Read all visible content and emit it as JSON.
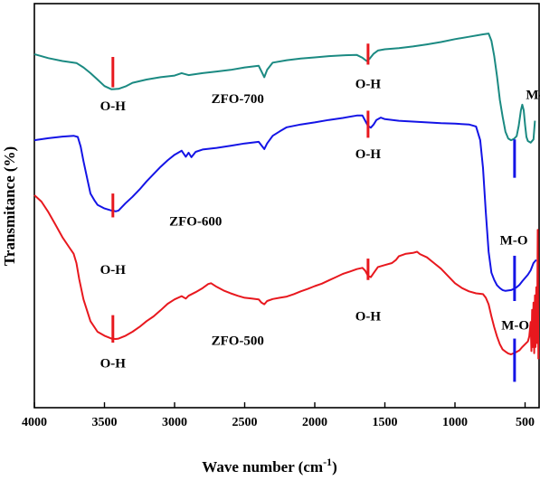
{
  "chart_data": {
    "type": "line",
    "xlabel": "Wave number (cm",
    "xlabel_sup": "-1",
    "xlabel_close": ")",
    "ylabel": "Transmitance (%)",
    "xlim": [
      4000,
      400
    ],
    "x_reversed": true,
    "xticks": [
      4000,
      3500,
      3000,
      2500,
      2000,
      1500,
      1000,
      500
    ],
    "ylim": [
      0,
      100
    ],
    "yticks_shown": false,
    "grid": false,
    "legend": "none",
    "series": [
      {
        "name": "ZFO-700",
        "color": "#1b8a82",
        "points": [
          [
            4000,
            87.5
          ],
          [
            3900,
            86.5
          ],
          [
            3800,
            85.8
          ],
          [
            3700,
            85.3
          ],
          [
            3650,
            84.2
          ],
          [
            3600,
            82.8
          ],
          [
            3550,
            81.2
          ],
          [
            3500,
            79.6
          ],
          [
            3450,
            78.8
          ],
          [
            3400,
            78.9
          ],
          [
            3350,
            79.5
          ],
          [
            3300,
            80.4
          ],
          [
            3200,
            81.2
          ],
          [
            3100,
            81.8
          ],
          [
            3000,
            82.2
          ],
          [
            2950,
            82.8
          ],
          [
            2900,
            82.3
          ],
          [
            2800,
            82.8
          ],
          [
            2700,
            83.2
          ],
          [
            2600,
            83.6
          ],
          [
            2500,
            84.2
          ],
          [
            2400,
            84.6
          ],
          [
            2380,
            83.2
          ],
          [
            2360,
            81.8
          ],
          [
            2340,
            83.6
          ],
          [
            2300,
            85.4
          ],
          [
            2200,
            86.0
          ],
          [
            2100,
            86.4
          ],
          [
            2000,
            86.7
          ],
          [
            1900,
            87.0
          ],
          [
            1800,
            87.2
          ],
          [
            1700,
            87.3
          ],
          [
            1660,
            86.6
          ],
          [
            1630,
            85.8
          ],
          [
            1610,
            86.3
          ],
          [
            1580,
            87.6
          ],
          [
            1550,
            88.4
          ],
          [
            1500,
            88.7
          ],
          [
            1400,
            89.0
          ],
          [
            1300,
            89.4
          ],
          [
            1200,
            89.9
          ],
          [
            1100,
            90.5
          ],
          [
            1000,
            91.2
          ],
          [
            900,
            91.8
          ],
          [
            800,
            92.4
          ],
          [
            760,
            92.6
          ],
          [
            740,
            90.8
          ],
          [
            720,
            87.0
          ],
          [
            700,
            82.0
          ],
          [
            680,
            76.2
          ],
          [
            660,
            72.0
          ],
          [
            640,
            68.3
          ],
          [
            620,
            66.6
          ],
          [
            600,
            66.2
          ],
          [
            580,
            66.5
          ],
          [
            560,
            67.2
          ],
          [
            545,
            69.8
          ],
          [
            530,
            73.6
          ],
          [
            520,
            75.0
          ],
          [
            510,
            73.6
          ],
          [
            500,
            70.0
          ],
          [
            490,
            67.0
          ],
          [
            480,
            66.0
          ],
          [
            460,
            65.6
          ],
          [
            440,
            66.4
          ],
          [
            430,
            71.0
          ]
        ]
      },
      {
        "name": "ZFO-600",
        "color": "#1414e6",
        "points": [
          [
            4000,
            66.2
          ],
          [
            3900,
            66.7
          ],
          [
            3800,
            67.1
          ],
          [
            3720,
            67.3
          ],
          [
            3690,
            67.0
          ],
          [
            3670,
            64.6
          ],
          [
            3650,
            61.0
          ],
          [
            3620,
            56.2
          ],
          [
            3600,
            53.0
          ],
          [
            3570,
            51.2
          ],
          [
            3550,
            50.2
          ],
          [
            3500,
            49.3
          ],
          [
            3450,
            48.8
          ],
          [
            3420,
            48.6
          ],
          [
            3400,
            48.8
          ],
          [
            3350,
            50.6
          ],
          [
            3300,
            52.2
          ],
          [
            3250,
            54.0
          ],
          [
            3200,
            56.0
          ],
          [
            3150,
            57.8
          ],
          [
            3100,
            59.6
          ],
          [
            3050,
            61.2
          ],
          [
            3000,
            62.6
          ],
          [
            2950,
            63.6
          ],
          [
            2920,
            62.1
          ],
          [
            2900,
            63.1
          ],
          [
            2880,
            62.0
          ],
          [
            2850,
            63.3
          ],
          [
            2800,
            63.9
          ],
          [
            2700,
            64.3
          ],
          [
            2600,
            64.8
          ],
          [
            2500,
            65.4
          ],
          [
            2400,
            65.8
          ],
          [
            2380,
            64.9
          ],
          [
            2360,
            64.0
          ],
          [
            2340,
            65.4
          ],
          [
            2300,
            67.3
          ],
          [
            2250,
            68.4
          ],
          [
            2200,
            69.4
          ],
          [
            2100,
            70.1
          ],
          [
            2000,
            70.6
          ],
          [
            1900,
            71.2
          ],
          [
            1800,
            71.7
          ],
          [
            1700,
            72.3
          ],
          [
            1660,
            72.3
          ],
          [
            1640,
            71.0
          ],
          [
            1620,
            69.7
          ],
          [
            1600,
            69.3
          ],
          [
            1580,
            70.1
          ],
          [
            1560,
            71.2
          ],
          [
            1530,
            71.8
          ],
          [
            1500,
            71.4
          ],
          [
            1400,
            71.0
          ],
          [
            1300,
            70.8
          ],
          [
            1200,
            70.6
          ],
          [
            1100,
            70.4
          ],
          [
            1000,
            70.3
          ],
          [
            900,
            70.1
          ],
          [
            850,
            69.6
          ],
          [
            820,
            66.2
          ],
          [
            800,
            59.3
          ],
          [
            780,
            48.3
          ],
          [
            760,
            38.6
          ],
          [
            740,
            33.4
          ],
          [
            720,
            31.6
          ],
          [
            700,
            30.3
          ],
          [
            680,
            29.6
          ],
          [
            660,
            29.1
          ],
          [
            640,
            28.9
          ],
          [
            600,
            29.1
          ],
          [
            580,
            29.4
          ],
          [
            560,
            29.8
          ],
          [
            540,
            30.4
          ],
          [
            520,
            31.3
          ],
          [
            500,
            32.1
          ],
          [
            480,
            32.9
          ],
          [
            460,
            34.0
          ],
          [
            440,
            35.8
          ],
          [
            420,
            36.6
          ]
        ]
      },
      {
        "name": "ZFO-500",
        "color": "#e8181e",
        "points": [
          [
            4000,
            52.6
          ],
          [
            3950,
            51.0
          ],
          [
            3900,
            48.4
          ],
          [
            3850,
            45.3
          ],
          [
            3800,
            42.2
          ],
          [
            3750,
            39.6
          ],
          [
            3720,
            38.1
          ],
          [
            3700,
            35.8
          ],
          [
            3680,
            31.8
          ],
          [
            3650,
            26.8
          ],
          [
            3600,
            21.4
          ],
          [
            3550,
            18.8
          ],
          [
            3500,
            17.8
          ],
          [
            3450,
            17.1
          ],
          [
            3420,
            17.0
          ],
          [
            3400,
            17.1
          ],
          [
            3350,
            17.8
          ],
          [
            3300,
            18.8
          ],
          [
            3250,
            20.0
          ],
          [
            3200,
            21.4
          ],
          [
            3150,
            22.6
          ],
          [
            3100,
            24.1
          ],
          [
            3050,
            25.7
          ],
          [
            3000,
            26.8
          ],
          [
            2950,
            27.6
          ],
          [
            2920,
            27.0
          ],
          [
            2900,
            27.7
          ],
          [
            2850,
            28.6
          ],
          [
            2800,
            29.6
          ],
          [
            2760,
            30.6
          ],
          [
            2740,
            30.8
          ],
          [
            2700,
            29.9
          ],
          [
            2650,
            29.0
          ],
          [
            2600,
            28.3
          ],
          [
            2550,
            27.7
          ],
          [
            2500,
            27.2
          ],
          [
            2450,
            27.0
          ],
          [
            2400,
            26.8
          ],
          [
            2380,
            26.0
          ],
          [
            2360,
            25.6
          ],
          [
            2340,
            26.4
          ],
          [
            2300,
            26.9
          ],
          [
            2250,
            27.2
          ],
          [
            2200,
            27.5
          ],
          [
            2150,
            28.1
          ],
          [
            2100,
            28.8
          ],
          [
            2050,
            29.4
          ],
          [
            2000,
            30.1
          ],
          [
            1950,
            30.7
          ],
          [
            1900,
            31.5
          ],
          [
            1850,
            32.3
          ],
          [
            1800,
            33.1
          ],
          [
            1750,
            33.7
          ],
          [
            1700,
            34.3
          ],
          [
            1660,
            34.6
          ],
          [
            1640,
            33.9
          ],
          [
            1620,
            32.6
          ],
          [
            1600,
            32.3
          ],
          [
            1580,
            33.3
          ],
          [
            1550,
            34.8
          ],
          [
            1500,
            35.3
          ],
          [
            1450,
            35.8
          ],
          [
            1420,
            36.6
          ],
          [
            1400,
            37.5
          ],
          [
            1350,
            38.1
          ],
          [
            1300,
            38.3
          ],
          [
            1270,
            38.6
          ],
          [
            1250,
            38.0
          ],
          [
            1200,
            37.2
          ],
          [
            1150,
            35.8
          ],
          [
            1100,
            34.4
          ],
          [
            1050,
            32.6
          ],
          [
            1000,
            30.8
          ],
          [
            950,
            29.6
          ],
          [
            900,
            28.8
          ],
          [
            850,
            28.3
          ],
          [
            800,
            28.1
          ],
          [
            780,
            27.2
          ],
          [
            760,
            25.6
          ],
          [
            740,
            22.6
          ],
          [
            720,
            19.9
          ],
          [
            700,
            17.6
          ],
          [
            680,
            15.7
          ],
          [
            660,
            14.4
          ],
          [
            640,
            13.9
          ],
          [
            620,
            13.4
          ],
          [
            600,
            13.2
          ],
          [
            580,
            13.5
          ],
          [
            560,
            13.8
          ],
          [
            540,
            14.2
          ],
          [
            520,
            15.0
          ],
          [
            500,
            15.7
          ],
          [
            480,
            16.4
          ],
          [
            470,
            17.6
          ],
          [
            460,
            21.2
          ],
          [
            455,
            14.0
          ],
          [
            450,
            24.2
          ],
          [
            445,
            15.0
          ],
          [
            440,
            26.0
          ],
          [
            435,
            13.5
          ],
          [
            430,
            27.8
          ],
          [
            425,
            15.0
          ],
          [
            420,
            29.8
          ],
          [
            415,
            16.0
          ],
          [
            410,
            44.0
          ],
          [
            405,
            12.0
          ]
        ]
      }
    ],
    "annotations": [
      {
        "text": "O-H",
        "marker_x": 3440,
        "marker_y": [
          79.3,
          86.8
        ],
        "marker_color": "#e8181e",
        "label_x": 3440,
        "label_y": 73.6
      },
      {
        "text": "ZFO-700",
        "label_x": 2550,
        "label_y": 75.4
      },
      {
        "text": "O-H",
        "marker_x": 1620,
        "marker_y": [
          84.9,
          90.1
        ],
        "marker_color": "#e8181e",
        "label_x": 1620,
        "label_y": 79.1
      },
      {
        "text": "M-O",
        "marker_x": 575,
        "marker_y": [
          56.9,
          66.4
        ],
        "marker_color": "#1414e6",
        "label_x": 395,
        "label_y": 76.4
      },
      {
        "text": "O-H",
        "marker_x": 1620,
        "marker_y": [
          66.8,
          73.5
        ],
        "marker_color": "#e8181e",
        "label_x": 1620,
        "label_y": 61.8
      },
      {
        "text": "ZFO-600",
        "label_x": 2850,
        "label_y": 45.1
      },
      {
        "text": "O-H",
        "marker_x": 3440,
        "marker_y": [
          47.1,
          53.0
        ],
        "marker_color": "#e8181e",
        "label_x": 3440,
        "label_y": 33.1
      },
      {
        "text": "M-O",
        "marker_x": 575,
        "marker_y": [
          26.4,
          37.6
        ],
        "marker_color": "#1414e6",
        "label_x": 580,
        "label_y": 40.4
      },
      {
        "text": "O-H",
        "marker_x": 1620,
        "marker_y": [
          31.6,
          36.9
        ],
        "marker_color": "#e8181e",
        "label_x": 1620,
        "label_y": 21.6
      },
      {
        "text": "ZFO-500",
        "label_x": 2550,
        "label_y": 15.6
      },
      {
        "text": "O-H",
        "marker_x": 3440,
        "marker_y": [
          16.1,
          22.9
        ],
        "marker_color": "#e8181e",
        "label_x": 3440,
        "label_y": 9.9
      },
      {
        "text": "M-O",
        "marker_x": 575,
        "marker_y": [
          6.4,
          17.1
        ],
        "marker_color": "#1414e6",
        "label_x": 570,
        "label_y": 19.3
      }
    ]
  }
}
